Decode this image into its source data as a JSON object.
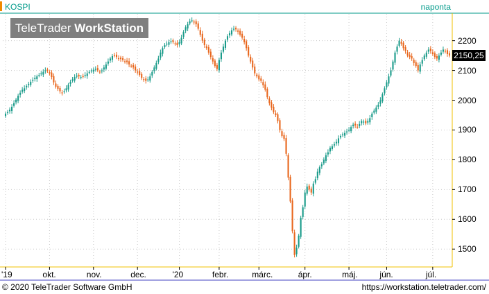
{
  "header": {
    "instrument": "KOSPI",
    "interval": "naponta",
    "watermark_light": "TeleTrader ",
    "watermark_bold": "WorkStation"
  },
  "footer": {
    "copyright": "© 2020 TeleTrader Software GmbH",
    "url": "https://workstation.teletrader.com/"
  },
  "colors": {
    "up": "#1a9b8a",
    "down": "#e8661c",
    "grid": "#c8c8c8",
    "axis_frame": "#f0c000",
    "last_price_bg": "#000000"
  },
  "chart_data": {
    "type": "candlestick",
    "ylim": [
      1440,
      2290
    ],
    "yticks": [
      1500,
      1600,
      1700,
      1800,
      1900,
      2000,
      2100,
      2200
    ],
    "ytick_labels": [
      "1500",
      "1600",
      "1700",
      "1800",
      "1900",
      "2000",
      "2100",
      "2200"
    ],
    "xticks": [
      {
        "label": "'19",
        "index": 0
      },
      {
        "label": "okt.",
        "index": 21
      },
      {
        "label": "nov.",
        "index": 42
      },
      {
        "label": "dec.",
        "index": 63
      },
      {
        "label": "'20",
        "index": 83
      },
      {
        "label": "febr.",
        "index": 102
      },
      {
        "label": "márc.",
        "index": 121
      },
      {
        "label": "ápr.",
        "index": 143
      },
      {
        "label": "máj.",
        "index": 164
      },
      {
        "label": "jún.",
        "index": 182
      },
      {
        "label": "júl.",
        "index": 204
      }
    ],
    "last_value": "2150,25",
    "closes": [
      1955,
      1960,
      1968,
      1978,
      1990,
      2002,
      2015,
      2025,
      2035,
      2040,
      2048,
      2055,
      2062,
      2068,
      2075,
      2080,
      2085,
      2090,
      2095,
      2100,
      2098,
      2090,
      2078,
      2060,
      2045,
      2038,
      2030,
      2025,
      2030,
      2040,
      2052,
      2062,
      2070,
      2078,
      2082,
      2080,
      2078,
      2080,
      2085,
      2090,
      2095,
      2100,
      2102,
      2105,
      2100,
      2095,
      2100,
      2110,
      2120,
      2130,
      2140,
      2148,
      2150,
      2145,
      2140,
      2138,
      2135,
      2130,
      2128,
      2120,
      2115,
      2110,
      2100,
      2095,
      2085,
      2075,
      2070,
      2065,
      2070,
      2080,
      2095,
      2110,
      2125,
      2140,
      2160,
      2175,
      2185,
      2190,
      2195,
      2198,
      2195,
      2190,
      2185,
      2195,
      2210,
      2230,
      2245,
      2255,
      2265,
      2268,
      2262,
      2255,
      2240,
      2220,
      2200,
      2185,
      2175,
      2160,
      2145,
      2130,
      2115,
      2105,
      2135,
      2160,
      2180,
      2200,
      2215,
      2225,
      2235,
      2240,
      2238,
      2230,
      2220,
      2210,
      2195,
      2175,
      2150,
      2130,
      2110,
      2090,
      2080,
      2070,
      2065,
      2050,
      2035,
      2010,
      1990,
      1975,
      1960,
      1950,
      1930,
      1900,
      1880,
      1870,
      1820,
      1740,
      1660,
      1560,
      1480,
      1505,
      1545,
      1605,
      1640,
      1690,
      1710,
      1700,
      1690,
      1720,
      1735,
      1760,
      1775,
      1785,
      1800,
      1815,
      1825,
      1840,
      1845,
      1852,
      1860,
      1872,
      1880,
      1885,
      1890,
      1895,
      1900,
      1910,
      1918,
      1915,
      1910,
      1920,
      1930,
      1928,
      1922,
      1930,
      1940,
      1955,
      1965,
      1975,
      1985,
      2000,
      2020,
      2040,
      2060,
      2080,
      2100,
      2130,
      2160,
      2180,
      2200,
      2190,
      2175,
      2165,
      2150,
      2145,
      2140,
      2125,
      2115,
      2100,
      2120,
      2135,
      2150,
      2160,
      2170,
      2165,
      2155,
      2145,
      2140,
      2150,
      2160,
      2170,
      2165,
      2155,
      2150
    ]
  }
}
